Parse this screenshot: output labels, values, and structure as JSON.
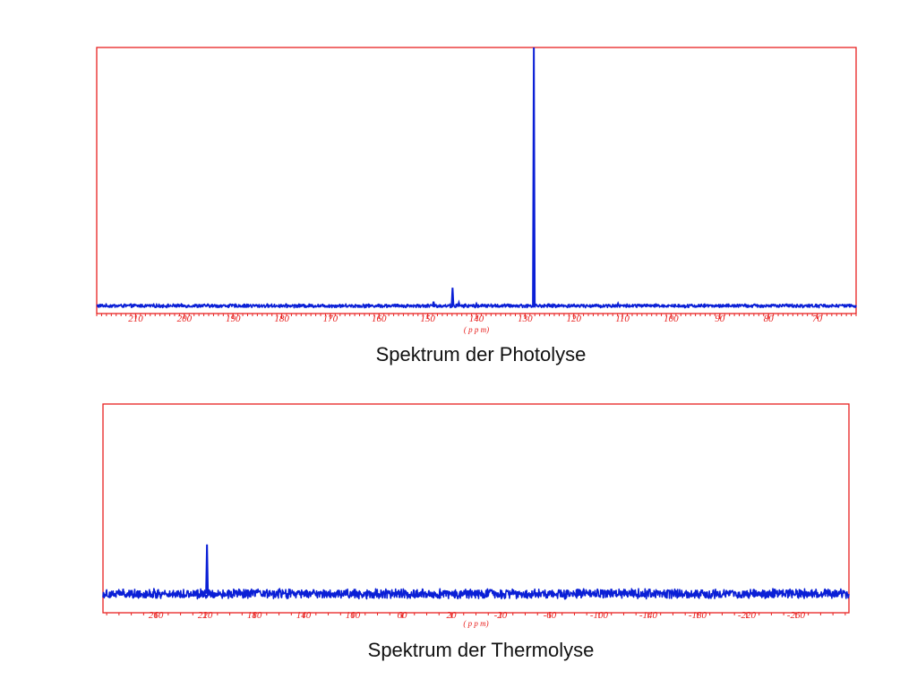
{
  "colors": {
    "frame": "#e8211f",
    "trace": "#0a1fd6",
    "background": "#ffffff"
  },
  "chart_data": [
    {
      "type": "line",
      "title": "Spektrum der Photolyse",
      "xlabel": "( p p m)",
      "x_reversed": true,
      "xlim": [
        218,
        62
      ],
      "ylim": [
        -3,
        100
      ],
      "baseline_noise": 0.6,
      "grid": false,
      "ticks": [
        210,
        200,
        190,
        180,
        170,
        160,
        150,
        140,
        130,
        120,
        110,
        100,
        90,
        80,
        70
      ],
      "tick_labels": [
        "210",
        "200",
        "190",
        "180",
        "170",
        "160",
        "150",
        "140",
        "130",
        "120",
        "110",
        "100",
        "90",
        "80",
        "70"
      ],
      "peaks": [
        {
          "x": 128.2,
          "y": 100
        },
        {
          "x": 144.9,
          "y": 7
        },
        {
          "x": 148.8,
          "y": 1.6
        },
        {
          "x": 143.6,
          "y": 1.2
        },
        {
          "x": 110.9,
          "y": 0.9
        },
        {
          "x": 140.0,
          "y": 0.8
        }
      ]
    },
    {
      "type": "line",
      "title": "Spektrum der Thermolyse",
      "xlabel": "( p p m)",
      "x_reversed": true,
      "xlim": [
        303,
        -303
      ],
      "ylim": [
        -10,
        100
      ],
      "baseline_noise": 2.2,
      "grid": false,
      "ticks": [
        260,
        220,
        180,
        140,
        100,
        60,
        20,
        -20,
        -60,
        -100,
        -140,
        -180,
        -220,
        -260
      ],
      "tick_labels": [
        "260",
        "220",
        "180",
        "140",
        "100",
        "60",
        "20",
        "-20",
        "-60",
        "-100",
        "-140",
        "-180",
        "-220",
        "-260"
      ],
      "peaks": [
        {
          "x": 218.5,
          "y": 26
        }
      ]
    }
  ]
}
